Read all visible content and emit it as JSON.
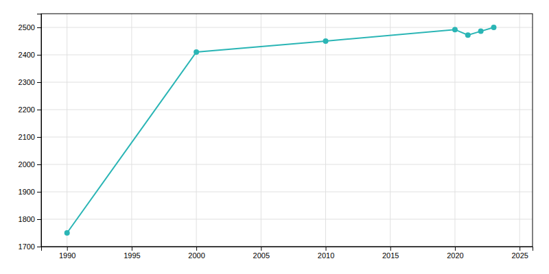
{
  "chart_data": {
    "type": "line",
    "x": [
      1990,
      2000,
      2010,
      2020,
      2021,
      2022,
      2023
    ],
    "values": [
      1750,
      2410,
      2450,
      2492,
      2472,
      2486,
      2500
    ],
    "color": "#2ab5b5",
    "marker": "circle",
    "xlim": [
      1988,
      2026
    ],
    "ylim": [
      1700,
      2550
    ],
    "xticks": [
      1990,
      1995,
      2000,
      2005,
      2010,
      2015,
      2020,
      2025
    ],
    "yticks": [
      1700,
      1800,
      1900,
      2000,
      2100,
      2200,
      2300,
      2400,
      2500
    ],
    "grid": true
  }
}
